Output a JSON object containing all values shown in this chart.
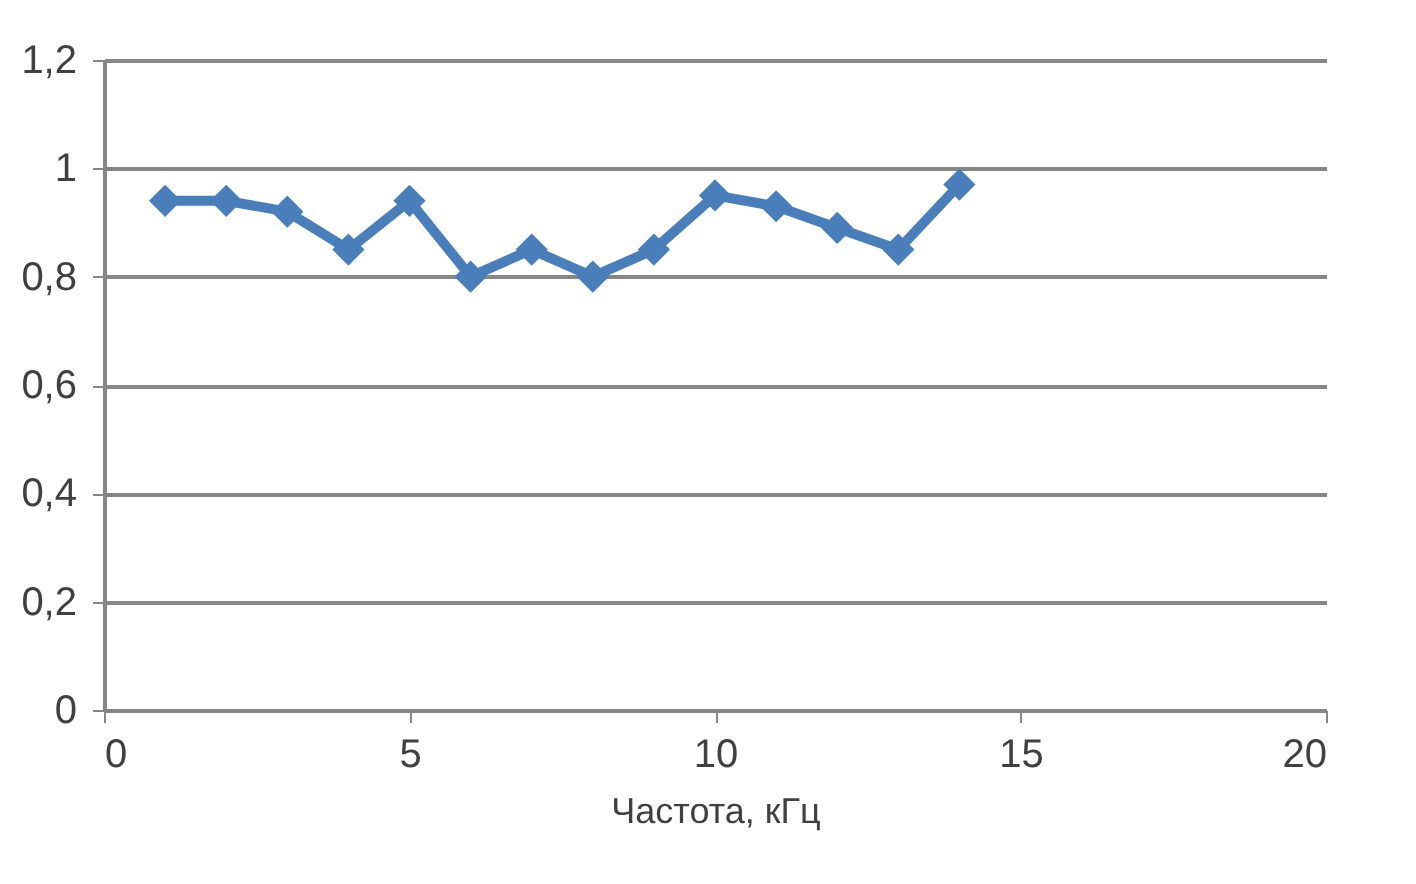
{
  "chart_data": {
    "type": "line",
    "xlabel": "Частота, кГц",
    "x": [
      1,
      2,
      3,
      4,
      5,
      6,
      7,
      8,
      9,
      10,
      11,
      12,
      13,
      14
    ],
    "series": [
      {
        "color": "#4a7ebb",
        "values": [
          0.94,
          0.94,
          0.92,
          0.85,
          0.94,
          0.8,
          0.85,
          0.8,
          0.85,
          0.95,
          0.93,
          0.89,
          0.85,
          0.97
        ]
      }
    ],
    "xlim": [
      0,
      20
    ],
    "xticks": [
      0,
      5,
      10,
      15,
      20
    ],
    "ylim": [
      0,
      1.2
    ],
    "yticks": [
      {
        "value": 0,
        "label": "0"
      },
      {
        "value": 0.2,
        "label": "0,2"
      },
      {
        "value": 0.4,
        "label": "0,4"
      },
      {
        "value": 0.6,
        "label": "0,6"
      },
      {
        "value": 0.8,
        "label": "0,8"
      },
      {
        "value": 1,
        "label": "1"
      },
      {
        "value": 1.2,
        "label": "1,2"
      }
    ],
    "grid": "y",
    "marker": "diamond",
    "line_style": "solid",
    "legend": false
  }
}
